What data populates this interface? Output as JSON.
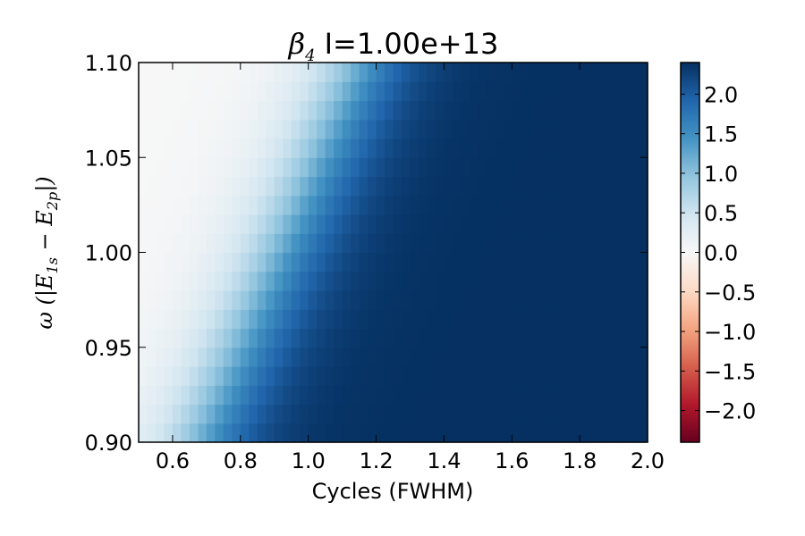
{
  "chart_data": {
    "type": "heatmap",
    "title": {
      "symbol": "β",
      "subscript": "4",
      "text": "I=1.00e+13"
    },
    "xlabel": "Cycles (FWHM)",
    "ylabel": {
      "prefix": "ω (|E",
      "sub1": "1s",
      "mid": " − E",
      "sub2": "2p",
      "suffix": "|)"
    },
    "xlim": [
      0.5,
      2.0
    ],
    "ylim": [
      0.9,
      1.1
    ],
    "x_ticks": [
      "0.6",
      "0.8",
      "1.0",
      "1.2",
      "1.4",
      "1.6",
      "1.8",
      "2.0"
    ],
    "y_ticks": [
      "0.90",
      "0.95",
      "1.00",
      "1.05",
      "1.10"
    ],
    "grid": false,
    "colormap": "RdBu",
    "colorbar": {
      "range": [
        -2.4,
        2.4
      ],
      "ticks": [
        "2.0",
        "1.5",
        "1.0",
        "0.5",
        "0.0",
        "−0.5",
        "−1.0",
        "−1.5",
        "−2.0"
      ]
    },
    "grid_resolution": {
      "nx": 60,
      "ny": 20
    },
    "value_model": {
      "description_of_field": "beta_4 rises from ~0 at short pulses to saturation ~2.4 at long pulses; transition shifts to longer cycles as omega increases",
      "transition_center": {
        "at_omega_0.90": 0.68,
        "at_omega_1.10": 1.15
      },
      "transition_width": 0.09,
      "max_value": 2.4
    },
    "colors": {
      "dark_blue": "#053061",
      "mid_blue": "#2166ac",
      "light_blue": "#92c5de",
      "white": "#f7f7f7",
      "light_red": "#f4a582",
      "mid_red": "#d6604d",
      "dark_red": "#67001f"
    }
  }
}
